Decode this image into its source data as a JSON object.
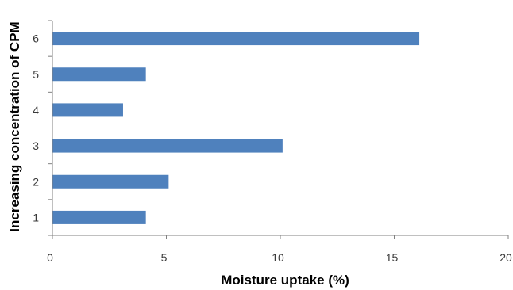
{
  "chart_data": {
    "type": "bar",
    "orientation": "horizontal",
    "categories": [
      "1",
      "2",
      "3",
      "4",
      "5",
      "6"
    ],
    "values": [
      4.1,
      5.1,
      10.1,
      3.1,
      4.1,
      16.1
    ],
    "xlabel": "Moisture uptake (%)",
    "ylabel": "Increasing concentration of CPM",
    "xlim": [
      0,
      20
    ],
    "xticks": [
      "0",
      "5",
      "10",
      "15",
      "20"
    ],
    "grid": false,
    "legend": "none",
    "bar_color": "#4f81bd"
  }
}
